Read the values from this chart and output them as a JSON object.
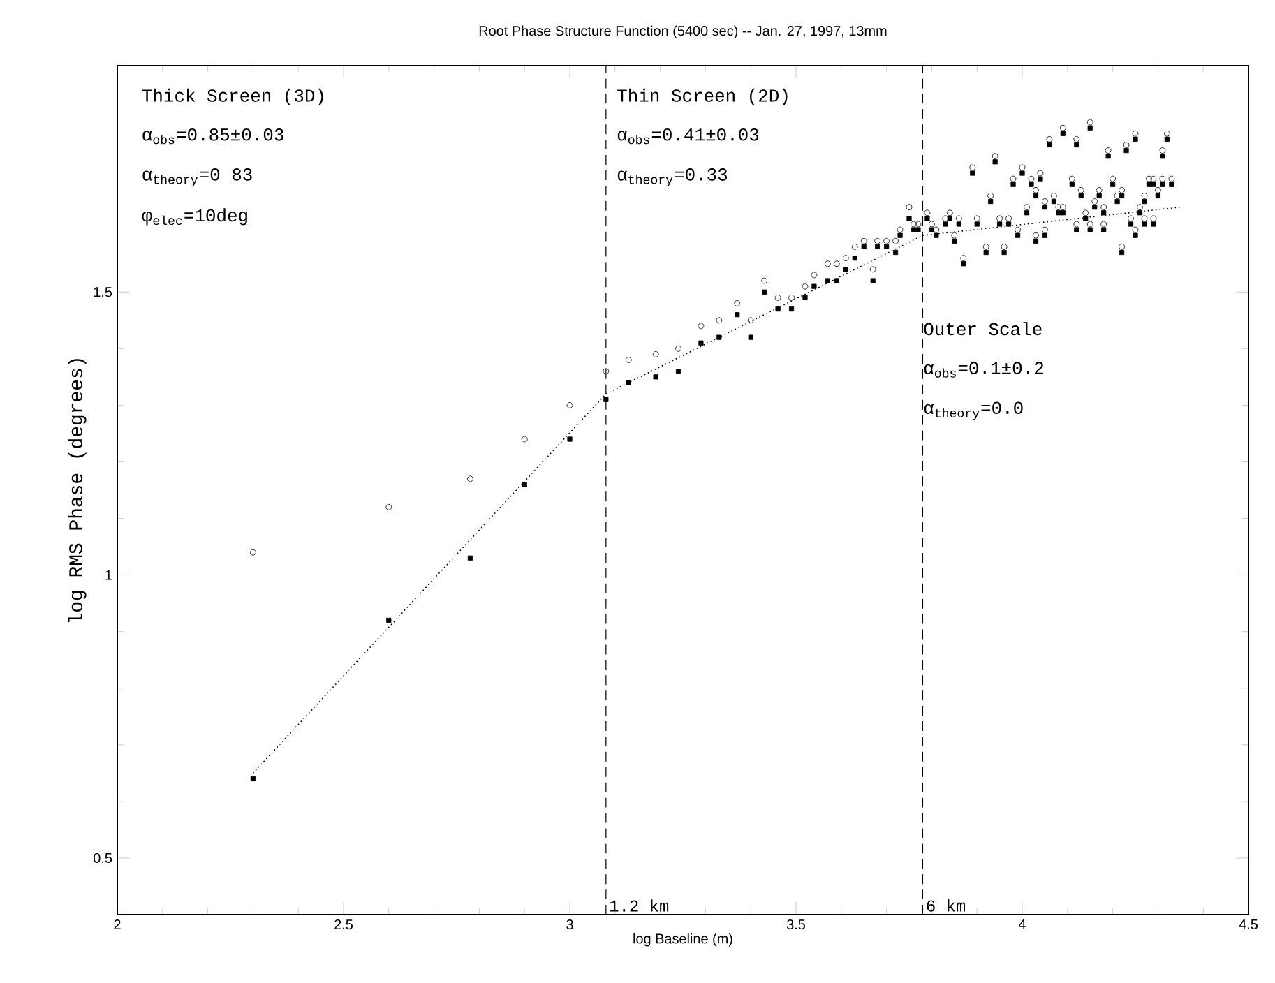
{
  "chart_data": {
    "type": "scatter",
    "title": "Root Phase Structure Function (5400 sec) -- Jan. 27, 1997, 13mm",
    "xlabel": "log Baseline (m)",
    "ylabel": "log RMS Phase (degrees)",
    "xlim": [
      2,
      4.5
    ],
    "ylim": [
      0.4,
      1.9
    ],
    "xticks": [
      2,
      2.5,
      3,
      3.5,
      4,
      4.5
    ],
    "yticks": [
      0.5,
      1,
      1.5
    ],
    "annotations": [
      "Thick Screen (3D)",
      "α$_{obs}$=0.85±0.03",
      "α$_{theory}$=0 83",
      "φ$_{elec}$=10deg",
      "Thin Screen (2D)",
      "α$_{obs}$=0.41±0.03",
      "α$_{theory}$=0.33",
      "Outer Scale",
      "α$_{obs}$=0.1±0.2",
      "α$_{theory}$=0.0"
    ],
    "ref_lines": [
      {
        "axis": "x",
        "value": 3.08,
        "label": "1.2 km",
        "line_style": "dashed",
        "color": "#000000"
      },
      {
        "axis": "x",
        "value": 3.78,
        "label": "6 km",
        "line_style": "dashed",
        "color": "#000000"
      }
    ],
    "series": [
      {
        "marker": "circle",
        "color": "#000000",
        "x": [
          2.3,
          2.6,
          2.78,
          2.9,
          3.0,
          3.08,
          3.13,
          3.19,
          3.24,
          3.29,
          3.33,
          3.37,
          3.4,
          3.43,
          3.46,
          3.49,
          3.52,
          3.54,
          3.57,
          3.59,
          3.61,
          3.63,
          3.65,
          3.67,
          3.68,
          3.7,
          3.72,
          3.73,
          3.75,
          3.76,
          3.77,
          3.79,
          3.8,
          3.81,
          3.83,
          3.84,
          3.85,
          3.86,
          3.87,
          3.89,
          3.9,
          3.92,
          3.93,
          3.94,
          3.95,
          3.96,
          3.97,
          3.98,
          3.99,
          4.0,
          4.01,
          4.02,
          4.03,
          4.03,
          4.04,
          4.05,
          4.05,
          4.06,
          4.07,
          4.08,
          4.09,
          4.09,
          4.11,
          4.12,
          4.12,
          4.13,
          4.15,
          4.14,
          4.15,
          4.16,
          4.17,
          4.18,
          4.18,
          4.19,
          4.2,
          4.21,
          4.22,
          4.22,
          4.23,
          4.24,
          4.25,
          4.25,
          4.26,
          4.27,
          4.27,
          4.28,
          4.29,
          4.29,
          4.3,
          4.31,
          4.31,
          4.32,
          4.33
        ],
        "values": [
          1.04,
          1.12,
          1.17,
          1.24,
          1.3,
          1.36,
          1.38,
          1.39,
          1.4,
          1.44,
          1.45,
          1.48,
          1.45,
          1.52,
          1.49,
          1.49,
          1.51,
          1.53,
          1.55,
          1.55,
          1.56,
          1.58,
          1.59,
          1.54,
          1.59,
          1.59,
          1.59,
          1.61,
          1.65,
          1.62,
          1.62,
          1.64,
          1.62,
          1.61,
          1.63,
          1.64,
          1.6,
          1.63,
          1.56,
          1.72,
          1.63,
          1.58,
          1.67,
          1.74,
          1.63,
          1.58,
          1.63,
          1.7,
          1.61,
          1.72,
          1.65,
          1.7,
          1.6,
          1.68,
          1.71,
          1.66,
          1.61,
          1.77,
          1.67,
          1.65,
          1.79,
          1.65,
          1.7,
          1.77,
          1.62,
          1.68,
          1.8,
          1.64,
          1.62,
          1.66,
          1.68,
          1.62,
          1.65,
          1.75,
          1.7,
          1.67,
          1.58,
          1.68,
          1.76,
          1.63,
          1.78,
          1.61,
          1.65,
          1.67,
          1.63,
          1.7,
          1.63,
          1.7,
          1.68,
          1.75,
          1.7,
          1.78,
          1.7
        ]
      },
      {
        "marker": "square",
        "color": "#000000",
        "x": [
          2.3,
          2.6,
          2.78,
          2.9,
          3.0,
          3.08,
          3.13,
          3.19,
          3.24,
          3.29,
          3.33,
          3.37,
          3.4,
          3.43,
          3.46,
          3.49,
          3.52,
          3.54,
          3.57,
          3.59,
          3.61,
          3.63,
          3.65,
          3.67,
          3.68,
          3.7,
          3.72,
          3.73,
          3.75,
          3.76,
          3.77,
          3.79,
          3.8,
          3.81,
          3.83,
          3.84,
          3.85,
          3.86,
          3.87,
          3.89,
          3.9,
          3.92,
          3.93,
          3.94,
          3.95,
          3.96,
          3.97,
          3.98,
          3.99,
          4.0,
          4.01,
          4.02,
          4.03,
          4.03,
          4.04,
          4.05,
          4.05,
          4.06,
          4.07,
          4.08,
          4.09,
          4.09,
          4.11,
          4.12,
          4.12,
          4.13,
          4.15,
          4.14,
          4.15,
          4.16,
          4.17,
          4.18,
          4.18,
          4.19,
          4.2,
          4.21,
          4.22,
          4.22,
          4.23,
          4.24,
          4.25,
          4.25,
          4.26,
          4.27,
          4.27,
          4.28,
          4.29,
          4.29,
          4.3,
          4.31,
          4.31,
          4.32,
          4.33
        ],
        "values": [
          0.64,
          0.92,
          1.03,
          1.16,
          1.24,
          1.31,
          1.34,
          1.35,
          1.36,
          1.41,
          1.42,
          1.46,
          1.42,
          1.5,
          1.47,
          1.47,
          1.49,
          1.51,
          1.52,
          1.52,
          1.54,
          1.56,
          1.58,
          1.52,
          1.58,
          1.58,
          1.57,
          1.6,
          1.63,
          1.61,
          1.61,
          1.63,
          1.61,
          1.6,
          1.62,
          1.63,
          1.59,
          1.62,
          1.55,
          1.71,
          1.62,
          1.57,
          1.66,
          1.73,
          1.62,
          1.57,
          1.62,
          1.69,
          1.6,
          1.71,
          1.64,
          1.69,
          1.59,
          1.67,
          1.7,
          1.65,
          1.6,
          1.76,
          1.66,
          1.64,
          1.78,
          1.64,
          1.69,
          1.76,
          1.61,
          1.67,
          1.79,
          1.63,
          1.61,
          1.65,
          1.67,
          1.61,
          1.64,
          1.74,
          1.69,
          1.66,
          1.57,
          1.67,
          1.75,
          1.62,
          1.77,
          1.6,
          1.64,
          1.66,
          1.62,
          1.69,
          1.62,
          1.69,
          1.67,
          1.74,
          1.69,
          1.77,
          1.69
        ]
      },
      {
        "type": "line",
        "marker": "none",
        "line_style": "dotted",
        "color": "#000000",
        "x": [
          2.3,
          3.08,
          3.78,
          4.35
        ],
        "values": [
          0.65,
          1.32,
          1.6,
          1.65
        ]
      }
    ]
  }
}
